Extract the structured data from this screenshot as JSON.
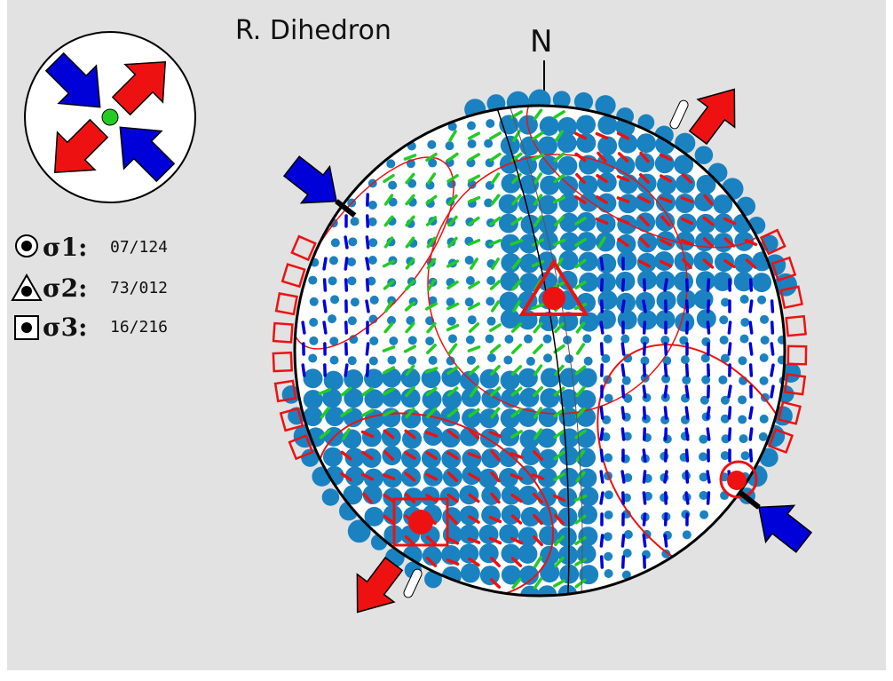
{
  "title": "R. Dihedron",
  "north_label": "N",
  "sigma": [
    {
      "symbol": "σ1:",
      "value": "07/124",
      "marker": "circle"
    },
    {
      "symbol": "σ2:",
      "value": "73/012",
      "marker": "triangle"
    },
    {
      "symbol": "σ3:",
      "value": "16/216",
      "marker": "square"
    }
  ],
  "colors": {
    "background": "#e2e2e2",
    "compression": "#0000d8",
    "extension": "#ee1111",
    "dots": "#1a82c0",
    "slip": "#22cc22",
    "net_fill": "#ffffff"
  },
  "icons": {
    "compression_arrow": "blue-arrow-icon",
    "extension_arrow": "red-arrow-icon",
    "center_marker": "green-dot-icon"
  }
}
